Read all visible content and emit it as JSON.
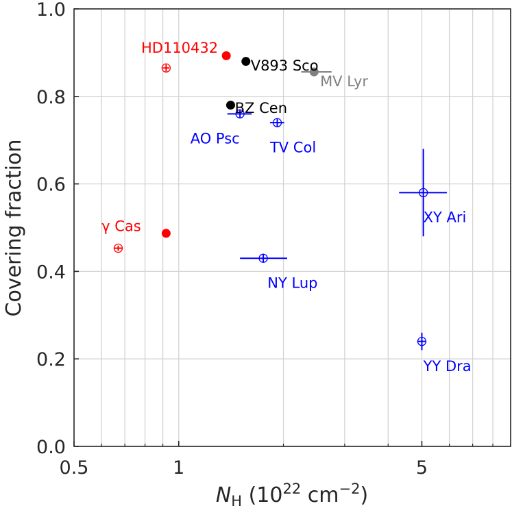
{
  "chart_data": {
    "type": "scatter",
    "title": "",
    "xlabel": {
      "symbol": "N",
      "subscript": "H",
      "units_pre": " (10",
      "units_exp": "22",
      "units_mid": " cm",
      "units_exp2": "−2",
      "units_post": ")"
    },
    "ylabel": "Covering fraction",
    "xscale": "log",
    "xlim": [
      0.5,
      9.0
    ],
    "ylim": [
      0.0,
      1.0
    ],
    "grid": true,
    "x_ticks": [
      {
        "value": 0.5,
        "label": "0.5"
      },
      {
        "value": 1,
        "label": "1"
      },
      {
        "value": 5,
        "label": "5"
      }
    ],
    "x_minor_ticks": [
      0.6,
      0.7,
      0.8,
      0.9,
      2,
      3,
      4,
      6,
      7,
      8,
      9
    ],
    "y_ticks": [
      {
        "value": 0.0,
        "label": "0.0"
      },
      {
        "value": 0.2,
        "label": "0.2"
      },
      {
        "value": 0.4,
        "label": "0.4"
      },
      {
        "value": 0.6,
        "label": "0.6"
      },
      {
        "value": 0.8,
        "label": "0.8"
      },
      {
        "value": 1.0,
        "label": "1.0"
      }
    ],
    "colors": {
      "red": "#ff0000",
      "black": "#000000",
      "gray": "#808080",
      "blue": "#0000ff"
    },
    "points": [
      {
        "id": "hd110432-filled",
        "x": 1.37,
        "y": 0.893,
        "color": "red",
        "marker": "filled",
        "xerr": [
          0.02,
          0.02
        ],
        "yerr": [
          0.006,
          0.006
        ]
      },
      {
        "id": "hd110432-open",
        "x": 0.92,
        "y": 0.865,
        "color": "red",
        "marker": "open",
        "xerr": [
          0.02,
          0.02
        ],
        "yerr": [
          0.008,
          0.008
        ]
      },
      {
        "id": "gamma-cas-filled",
        "x": 0.92,
        "y": 0.487,
        "color": "red",
        "marker": "filled",
        "xerr": [
          0,
          0
        ],
        "yerr": [
          0,
          0
        ]
      },
      {
        "id": "gamma-cas-open",
        "x": 0.67,
        "y": 0.453,
        "color": "red",
        "marker": "open",
        "xerr": [
          0.02,
          0.02
        ],
        "yerr": [
          0.006,
          0.006
        ]
      },
      {
        "id": "v893-sco",
        "x": 1.56,
        "y": 0.88,
        "color": "black",
        "marker": "filled",
        "xerr": [
          0.02,
          0.02
        ],
        "yerr": [
          0.007,
          0.007
        ]
      },
      {
        "id": "bz-cen",
        "x": 1.41,
        "y": 0.78,
        "color": "black",
        "marker": "filled",
        "xerr": [
          0.02,
          0.02
        ],
        "yerr": [
          0.007,
          0.007
        ]
      },
      {
        "id": "mv-lyr",
        "x": 2.45,
        "y": 0.856,
        "color": "gray",
        "marker": "filled",
        "xerr": [
          0.2,
          0.3
        ],
        "yerr": [
          0.01,
          0.01
        ]
      },
      {
        "id": "ao-psc",
        "x": 1.5,
        "y": 0.76,
        "color": "blue",
        "marker": "open",
        "xerr": [
          0.12,
          0.12
        ],
        "yerr": [
          0.01,
          0.01
        ]
      },
      {
        "id": "tv-col",
        "x": 1.92,
        "y": 0.74,
        "color": "blue",
        "marker": "open",
        "xerr": [
          0.09,
          0.09
        ],
        "yerr": [
          0.01,
          0.01
        ]
      },
      {
        "id": "xy-ari",
        "x": 5.05,
        "y": 0.58,
        "color": "blue",
        "marker": "open",
        "xerr": [
          0.75,
          0.85
        ],
        "yerr": [
          0.1,
          0.1
        ]
      },
      {
        "id": "ny-lup",
        "x": 1.75,
        "y": 0.43,
        "color": "blue",
        "marker": "open",
        "xerr": [
          0.25,
          0.3
        ],
        "yerr": [
          0.01,
          0.01
        ]
      },
      {
        "id": "yy-dra",
        "x": 5.0,
        "y": 0.24,
        "color": "blue",
        "marker": "open",
        "xerr": [
          0.15,
          0.15
        ],
        "yerr": [
          0.02,
          0.02
        ]
      }
    ],
    "annotations": [
      {
        "text": "HD110432",
        "x": 0.78,
        "y": 0.912,
        "color": "red"
      },
      {
        "text": "V893 Sco",
        "x": 1.61,
        "y": 0.872,
        "color": "black"
      },
      {
        "text": "MV Lyr",
        "x": 2.55,
        "y": 0.836,
        "color": "gray"
      },
      {
        "text": "BZ Cen",
        "x": 1.45,
        "y": 0.775,
        "color": "black"
      },
      {
        "text": "AO Psc",
        "x": 1.08,
        "y": 0.705,
        "color": "blue"
      },
      {
        "text": "TV Col",
        "x": 1.83,
        "y": 0.685,
        "color": "blue"
      },
      {
        "text": "γ Cas",
        "x": 0.6,
        "y": 0.505,
        "color": "red"
      },
      {
        "text": "XY Ari",
        "x": 5.05,
        "y": 0.525,
        "color": "blue"
      },
      {
        "text": "NY Lup",
        "x": 1.8,
        "y": 0.375,
        "color": "blue"
      },
      {
        "text": "YY Dra",
        "x": 5.05,
        "y": 0.185,
        "color": "blue"
      }
    ]
  }
}
